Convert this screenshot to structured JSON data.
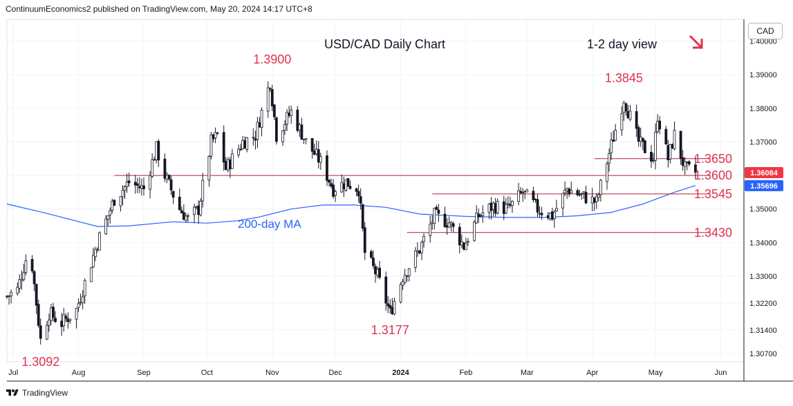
{
  "header": {
    "text": "ContinuumEconomics2 published on TradingView.com, May 20, 2024 14:17 UTC+8"
  },
  "footer": {
    "brand": "TradingView"
  },
  "currency": "CAD",
  "chart_data": {
    "type": "candlestick",
    "title": "USD/CAD Daily Chart",
    "subtitle": "1-2 day view",
    "ylim": [
      1.3045,
      1.4065
    ],
    "y_ticks": [
      "1.40000",
      "1.39000",
      "1.38000",
      "1.37000",
      "1.36000",
      "1.35000",
      "1.34000",
      "1.33000",
      "1.32200",
      "1.31400",
      "1.30700"
    ],
    "y_tick_values": [
      1.4,
      1.39,
      1.38,
      1.37,
      1.36,
      1.35,
      1.34,
      1.33,
      1.322,
      1.314,
      1.307
    ],
    "x_ticks": [
      "Jul",
      "Aug",
      "Sep",
      "Oct",
      "Nov",
      "Dec",
      "2024",
      "Feb",
      "Mar",
      "Apr",
      "May",
      "Jun"
    ],
    "x_start": "2023-06-28",
    "x_end": "2024-06-12",
    "price_labels": [
      {
        "text": "1.36084",
        "value": 1.36084,
        "color": "#f23645"
      },
      {
        "text": "1.35696",
        "value": 1.35696,
        "color": "#2962ff"
      }
    ],
    "annotations": [
      {
        "text": "1.3900",
        "date": "2023-11-01",
        "value": 1.39
      },
      {
        "text": "1.3845",
        "date": "2024-04-16",
        "value": 1.3845
      },
      {
        "text": "1.3177",
        "date": "2023-12-27",
        "value": 1.3177
      },
      {
        "text": "1.3092",
        "date": "2023-07-14",
        "value": 1.3092
      },
      {
        "text": "1.3650",
        "value": 1.365
      },
      {
        "text": "1.3600",
        "value": 1.36
      },
      {
        "text": "1.3545",
        "value": 1.3545
      },
      {
        "text": "1.3430",
        "value": 1.343
      }
    ],
    "levels": [
      {
        "value": 1.365,
        "from": "2024-04-02",
        "to": "2024-05-27"
      },
      {
        "value": 1.36,
        "from": "2023-08-18",
        "to": "2024-05-27"
      },
      {
        "value": 1.3545,
        "from": "2024-01-16",
        "to": "2024-05-27"
      },
      {
        "value": 1.343,
        "from": "2024-01-04",
        "to": "2024-05-27"
      }
    ],
    "ma_label": "200-day MA",
    "ma_200": [
      {
        "date": "2023-06-28",
        "value": 1.3515
      },
      {
        "date": "2023-07-15",
        "value": 1.349
      },
      {
        "date": "2023-08-10",
        "value": 1.3448
      },
      {
        "date": "2023-08-25",
        "value": 1.345
      },
      {
        "date": "2023-09-15",
        "value": 1.3462
      },
      {
        "date": "2023-10-01",
        "value": 1.3458
      },
      {
        "date": "2023-10-15",
        "value": 1.3465
      },
      {
        "date": "2023-10-25",
        "value": 1.3475
      },
      {
        "date": "2023-11-10",
        "value": 1.35
      },
      {
        "date": "2023-11-25",
        "value": 1.3512
      },
      {
        "date": "2023-12-10",
        "value": 1.3512
      },
      {
        "date": "2023-12-25",
        "value": 1.3505
      },
      {
        "date": "2024-01-10",
        "value": 1.3485
      },
      {
        "date": "2024-02-01",
        "value": 1.3478
      },
      {
        "date": "2024-02-20",
        "value": 1.3475
      },
      {
        "date": "2024-03-10",
        "value": 1.3475
      },
      {
        "date": "2024-03-25",
        "value": 1.348
      },
      {
        "date": "2024-04-10",
        "value": 1.349
      },
      {
        "date": "2024-04-25",
        "value": 1.3515
      },
      {
        "date": "2024-05-10",
        "value": 1.355
      },
      {
        "date": "2024-05-20",
        "value": 1.357
      }
    ],
    "price_path": [
      {
        "date": "2023-06-28",
        "value": 1.324
      },
      {
        "date": "2023-07-03",
        "value": 1.326
      },
      {
        "date": "2023-07-07",
        "value": 1.335
      },
      {
        "date": "2023-07-10",
        "value": 1.333
      },
      {
        "date": "2023-07-14",
        "value": 1.311
      },
      {
        "date": "2023-07-18",
        "value": 1.319
      },
      {
        "date": "2023-07-24",
        "value": 1.316
      },
      {
        "date": "2023-07-31",
        "value": 1.32
      },
      {
        "date": "2023-08-04",
        "value": 1.328
      },
      {
        "date": "2023-08-10",
        "value": 1.34
      },
      {
        "date": "2023-08-18",
        "value": 1.353
      },
      {
        "date": "2023-08-25",
        "value": 1.358
      },
      {
        "date": "2023-09-01",
        "value": 1.356
      },
      {
        "date": "2023-09-07",
        "value": 1.368
      },
      {
        "date": "2023-09-11",
        "value": 1.36
      },
      {
        "date": "2023-09-18",
        "value": 1.35
      },
      {
        "date": "2023-09-22",
        "value": 1.347
      },
      {
        "date": "2023-09-27",
        "value": 1.35
      },
      {
        "date": "2023-10-03",
        "value": 1.37
      },
      {
        "date": "2023-10-06",
        "value": 1.372
      },
      {
        "date": "2023-10-10",
        "value": 1.362
      },
      {
        "date": "2023-10-13",
        "value": 1.365
      },
      {
        "date": "2023-10-18",
        "value": 1.37
      },
      {
        "date": "2023-10-24",
        "value": 1.372
      },
      {
        "date": "2023-10-31",
        "value": 1.388
      },
      {
        "date": "2023-11-03",
        "value": 1.372
      },
      {
        "date": "2023-11-10",
        "value": 1.379
      },
      {
        "date": "2023-11-17",
        "value": 1.37
      },
      {
        "date": "2023-11-24",
        "value": 1.364
      },
      {
        "date": "2023-11-30",
        "value": 1.356
      },
      {
        "date": "2023-12-06",
        "value": 1.358
      },
      {
        "date": "2023-12-12",
        "value": 1.356
      },
      {
        "date": "2023-12-15",
        "value": 1.337
      },
      {
        "date": "2023-12-21",
        "value": 1.33
      },
      {
        "date": "2023-12-27",
        "value": 1.319
      },
      {
        "date": "2024-01-02",
        "value": 1.33
      },
      {
        "date": "2024-01-10",
        "value": 1.338
      },
      {
        "date": "2024-01-17",
        "value": 1.348
      },
      {
        "date": "2024-01-24",
        "value": 1.346
      },
      {
        "date": "2024-01-31",
        "value": 1.339
      },
      {
        "date": "2024-02-07",
        "value": 1.348
      },
      {
        "date": "2024-02-14",
        "value": 1.351
      },
      {
        "date": "2024-02-21",
        "value": 1.35
      },
      {
        "date": "2024-02-28",
        "value": 1.355
      },
      {
        "date": "2024-03-06",
        "value": 1.35
      },
      {
        "date": "2024-03-13",
        "value": 1.348
      },
      {
        "date": "2024-03-20",
        "value": 1.356
      },
      {
        "date": "2024-03-27",
        "value": 1.354
      },
      {
        "date": "2024-04-03",
        "value": 1.352
      },
      {
        "date": "2024-04-10",
        "value": 1.369
      },
      {
        "date": "2024-04-16",
        "value": 1.383
      },
      {
        "date": "2024-04-23",
        "value": 1.37
      },
      {
        "date": "2024-04-30",
        "value": 1.365
      },
      {
        "date": "2024-05-02",
        "value": 1.378
      },
      {
        "date": "2024-05-07",
        "value": 1.365
      },
      {
        "date": "2024-05-10",
        "value": 1.372
      },
      {
        "date": "2024-05-15",
        "value": 1.362
      },
      {
        "date": "2024-05-20",
        "value": 1.3608
      }
    ]
  }
}
